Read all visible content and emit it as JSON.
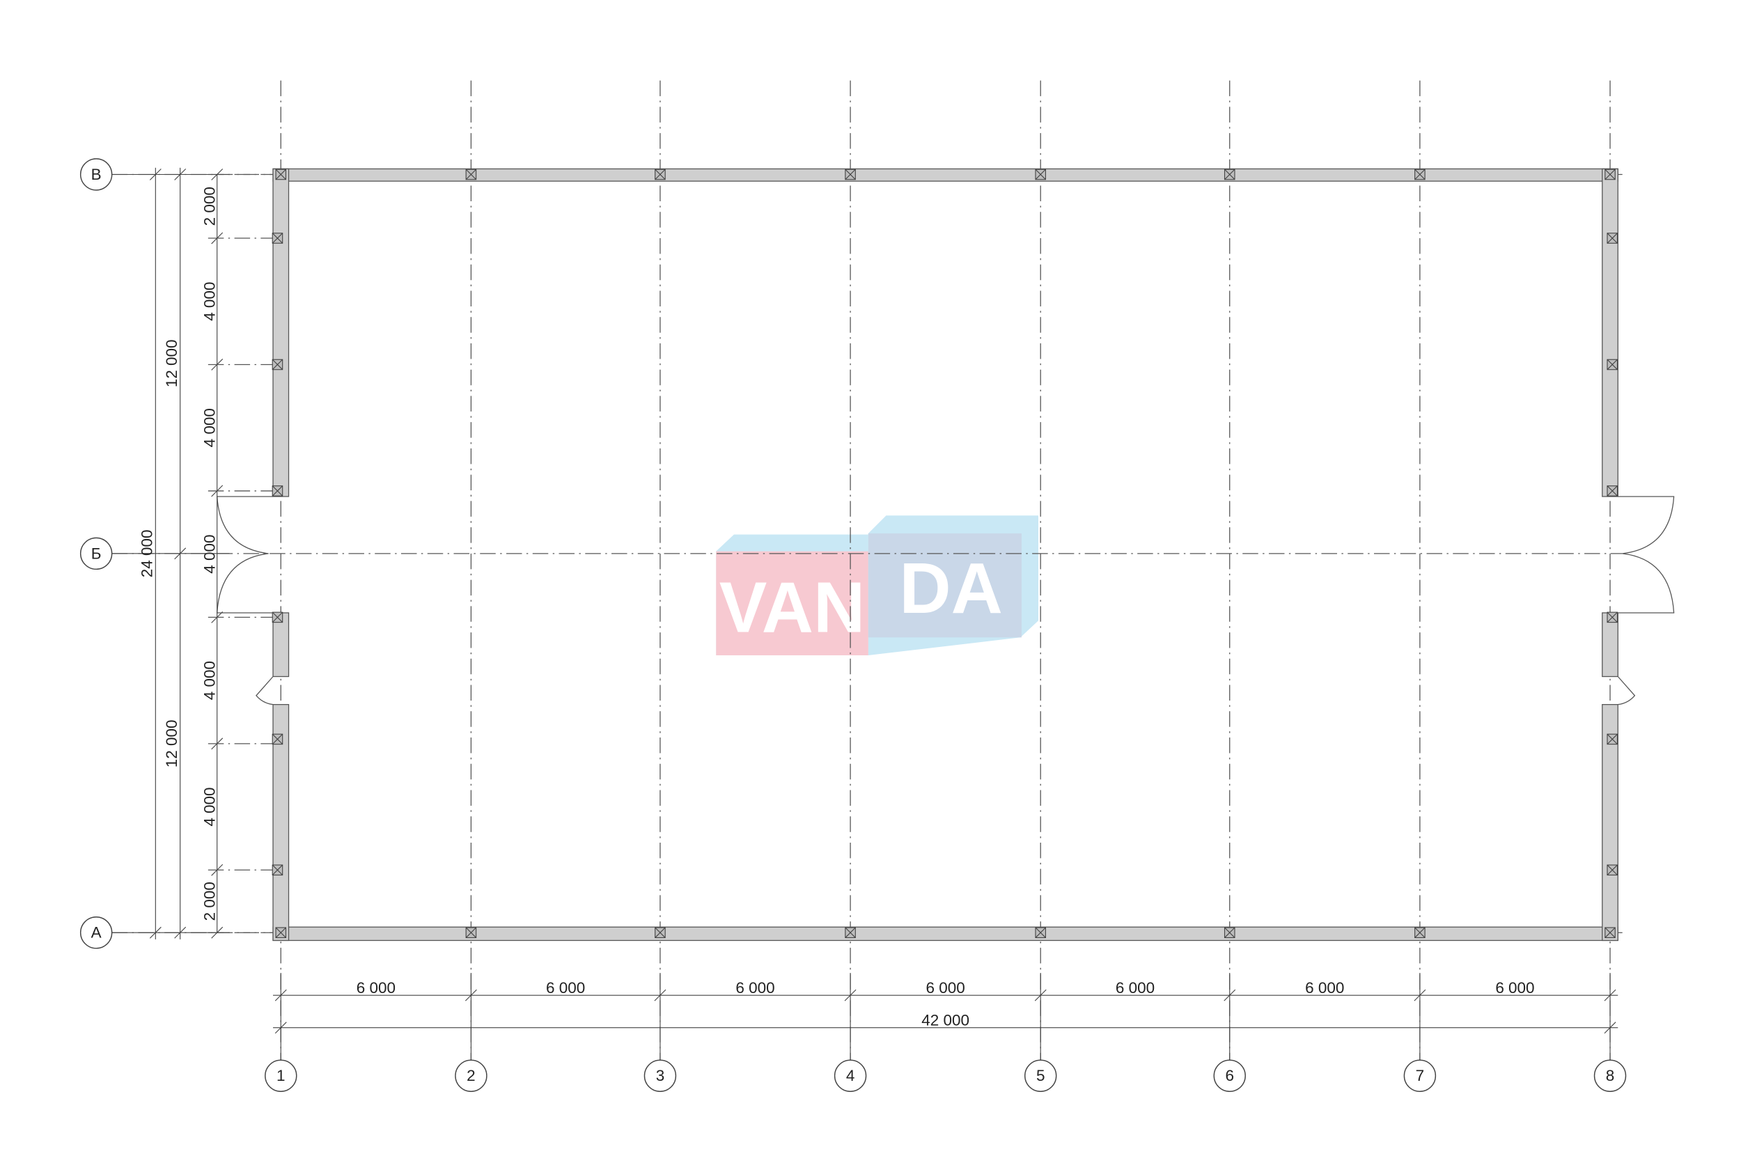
{
  "axes": {
    "columns": [
      "1",
      "2",
      "3",
      "4",
      "5",
      "6",
      "7",
      "8"
    ],
    "rows": [
      "В",
      "Б",
      "А"
    ]
  },
  "dimensions": {
    "bottom_spans": [
      "6 000",
      "6 000",
      "6 000",
      "6 000",
      "6 000",
      "6 000",
      "6 000"
    ],
    "bottom_total": "42 000",
    "left_chain": [
      "2 000",
      "4 000",
      "4 000",
      "4 000",
      "4 000",
      "4 000",
      "2 000"
    ],
    "left_halves": [
      "12 000",
      "12 000"
    ],
    "left_total": "24 000"
  },
  "watermark": {
    "text_left": "VAN",
    "text_right": "DA",
    "colors": {
      "pink": "#f7c9d1",
      "blue": "#c9e8f5",
      "overlap": "#c9d7e8"
    }
  }
}
